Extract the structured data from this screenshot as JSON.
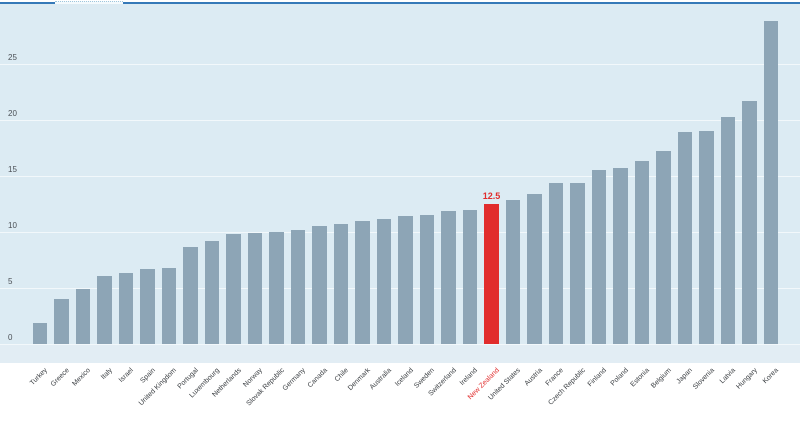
{
  "chart_data": {
    "type": "bar",
    "title": "",
    "xlabel": "",
    "ylabel": "",
    "ylim": [
      0,
      30
    ],
    "yticks": [
      0,
      5,
      10,
      15,
      20,
      25
    ],
    "grid": true,
    "legend": false,
    "categories": [
      "Turkey",
      "Greece",
      "Mexico",
      "Italy",
      "Israel",
      "Spain",
      "United Kingdom",
      "Portugal",
      "Luxembourg",
      "Netherlands",
      "Norway",
      "Slovak Republic",
      "Germany",
      "Canada",
      "Chile",
      "Denmark",
      "Australia",
      "Iceland",
      "Sweden",
      "Switzerland",
      "Ireland",
      "New Zealand",
      "United States",
      "Austria",
      "France",
      "Czech Republic",
      "Finland",
      "Poland",
      "Estonia",
      "Belgium",
      "Japan",
      "Slovenia",
      "Latvia",
      "Hungary",
      "Korea"
    ],
    "values": [
      1.9,
      4.0,
      4.9,
      6.1,
      6.3,
      6.7,
      6.8,
      8.7,
      9.2,
      9.8,
      9.9,
      10.0,
      10.2,
      10.5,
      10.7,
      11.0,
      11.2,
      11.4,
      11.5,
      11.9,
      12.0,
      12.5,
      12.9,
      13.4,
      14.4,
      14.4,
      15.5,
      15.7,
      16.3,
      17.2,
      18.9,
      19.0,
      20.3,
      21.7,
      28.8
    ],
    "highlight_index": 21,
    "highlight_category": "New Zealand",
    "highlight_value_label": "12.5",
    "colors": {
      "bar": "#8da5b6",
      "highlight_bar": "#e12c2c",
      "plot_background": "#dcebf3",
      "top_border": "#3579b8",
      "gridline": "#f2f8fb",
      "axis_text": "#4a4f55",
      "highlight_text": "#e12c2c"
    }
  }
}
